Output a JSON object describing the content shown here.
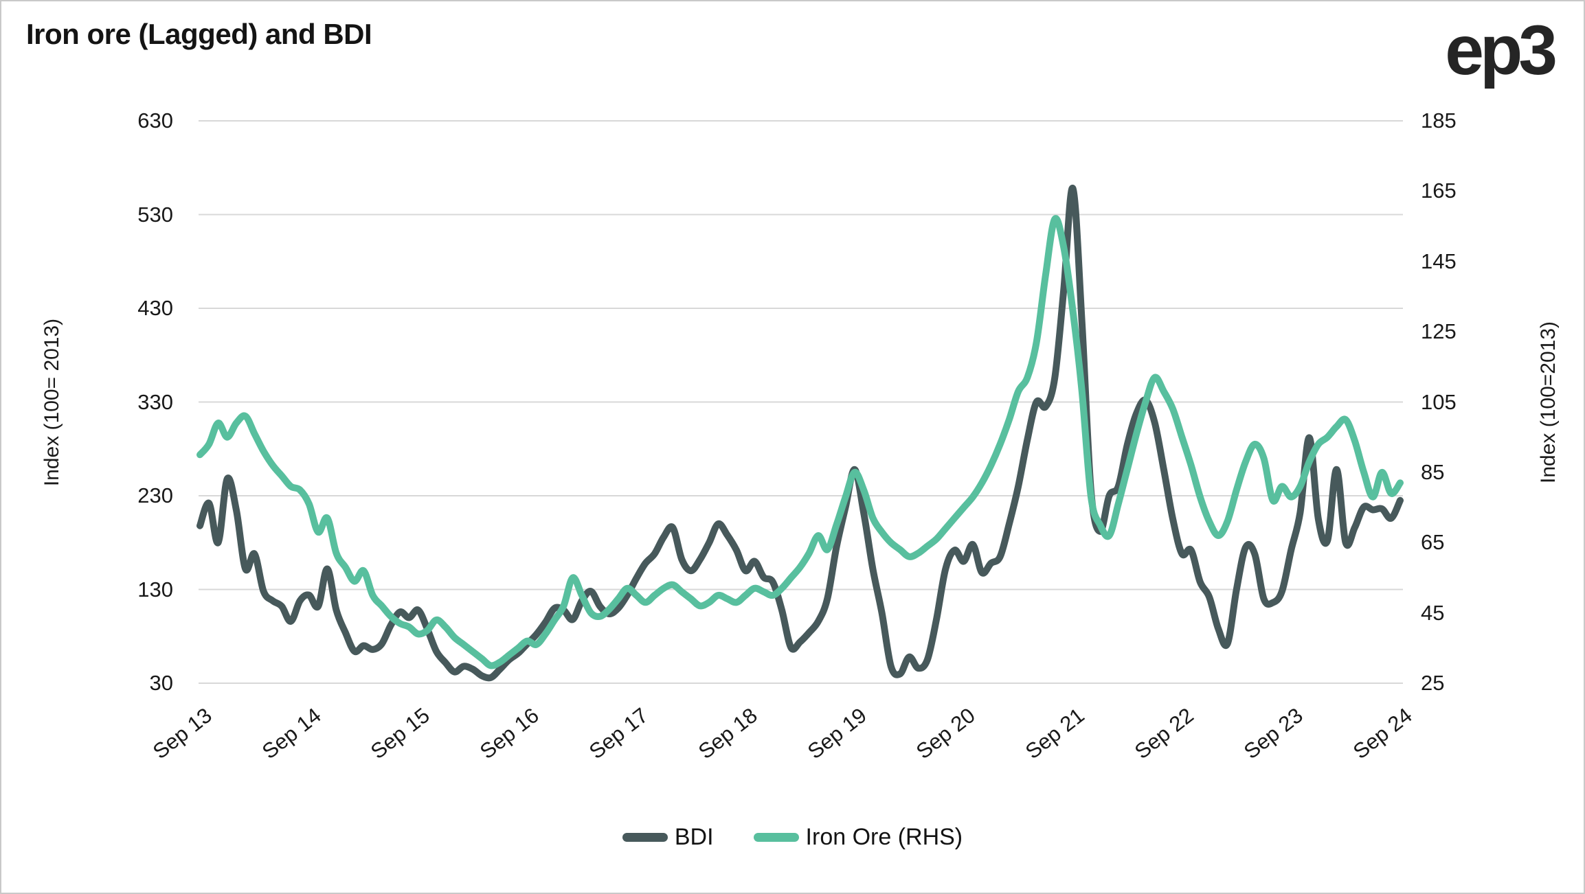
{
  "header": {
    "title": "Iron ore (Lagged) and BDI",
    "logo_text": "ep3"
  },
  "legend": {
    "items": [
      {
        "label": "BDI",
        "color": "#47595B"
      },
      {
        "label": "Iron Ore (RHS)",
        "color": "#58BF9E"
      }
    ]
  },
  "chart_data": {
    "type": "line",
    "title": "Iron ore (Lagged) and BDI",
    "grid": "horizontal",
    "grid_color": "#d8d8d8",
    "legend_position": "bottom-center",
    "x_unit": "monthly, Sep 2013 through Sep 2024 (133 points per series)",
    "x_tick_labels": [
      "Sep 13",
      "Sep 14",
      "Sep 15",
      "Sep 16",
      "Sep 17",
      "Sep 18",
      "Sep 19",
      "Sep 20",
      "Sep 21",
      "Sep 22",
      "Sep 23",
      "Sep 24"
    ],
    "left_axis": {
      "label": "Index (100= 2013)",
      "ticks": [
        630,
        530,
        430,
        330,
        230,
        130,
        30
      ],
      "range": [
        30,
        630
      ]
    },
    "right_axis": {
      "label": "Index (100=2013)",
      "ticks": [
        185,
        165,
        145,
        125,
        105,
        85,
        65,
        45,
        25
      ],
      "range": [
        25,
        185
      ]
    },
    "series": [
      {
        "name": "BDI",
        "axis": "left",
        "color": "#47595B",
        "values": [
          198,
          222,
          180,
          248,
          215,
          152,
          168,
          128,
          118,
          112,
          96,
          118,
          124,
          112,
          152,
          108,
          84,
          64,
          70,
          66,
          72,
          92,
          106,
          100,
          108,
          88,
          64,
          52,
          42,
          48,
          45,
          38,
          36,
          45,
          55,
          62,
          72,
          82,
          95,
          110,
          108,
          98,
          118,
          128,
          112,
          104,
          110,
          124,
          142,
          158,
          168,
          186,
          196,
          162,
          150,
          162,
          180,
          200,
          188,
          172,
          150,
          160,
          143,
          138,
          108,
          68,
          74,
          84,
          96,
          120,
          175,
          218,
          258,
          212,
          152,
          105,
          48,
          40,
          58,
          46,
          55,
          98,
          152,
          172,
          160,
          178,
          148,
          158,
          165,
          200,
          240,
          290,
          330,
          325,
          355,
          450,
          558,
          415,
          235,
          192,
          230,
          240,
          285,
          318,
          332,
          308,
          258,
          205,
          168,
          172,
          138,
          122,
          88,
          72,
          130,
          175,
          168,
          120,
          116,
          128,
          172,
          212,
          292,
          205,
          182,
          258,
          180,
          196,
          218,
          215,
          216,
          206,
          225
        ]
      },
      {
        "name": "Iron Ore (RHS)",
        "axis": "right",
        "color": "#58BF9E",
        "values": [
          90,
          93,
          99,
          95,
          99,
          101,
          96,
          91,
          87,
          84,
          81,
          80,
          76,
          68,
          72,
          62,
          58,
          54,
          57,
          50,
          47,
          44,
          42,
          41,
          39,
          40,
          43,
          41,
          38,
          36,
          34,
          32,
          30,
          31,
          33,
          35,
          37,
          36,
          39,
          43,
          47,
          55,
          50,
          45,
          44,
          46,
          49,
          52,
          50,
          48,
          50,
          52,
          53,
          51,
          49,
          47,
          48,
          50,
          49,
          48,
          50,
          52,
          51,
          50,
          52,
          55,
          58,
          62,
          67,
          63,
          70,
          78,
          85,
          80,
          72,
          68,
          65,
          63,
          61,
          62,
          64,
          66,
          69,
          72,
          75,
          78,
          82,
          87,
          93,
          100,
          108,
          112,
          122,
          141,
          157,
          149,
          131,
          108,
          78,
          70,
          67,
          76,
          86,
          96,
          105,
          112,
          108,
          103,
          95,
          87,
          78,
          71,
          67,
          71,
          80,
          88,
          93,
          89,
          77,
          81,
          78,
          81,
          88,
          93,
          95,
          98,
          100,
          94,
          85,
          78,
          85,
          79,
          82
        ]
      }
    ]
  }
}
